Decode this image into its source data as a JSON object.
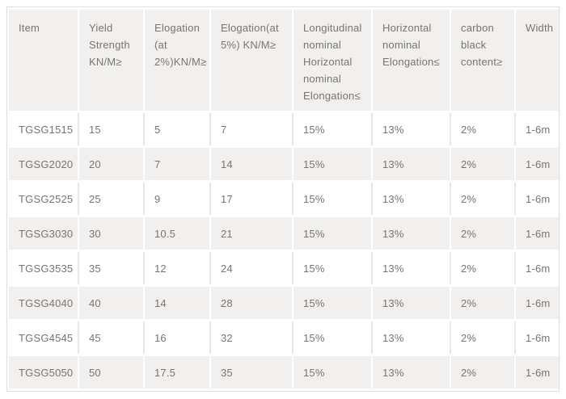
{
  "chart_data": {
    "type": "table",
    "title": "",
    "columns": [
      "Item",
      "Yield Strength KN/M≥",
      "Elogation (at 2%)KN/M≥",
      "Elogation(at 5%) KN/M≥",
      "Longitudinal nominal Horizontal nominal Elongation≤",
      "Horizontal nominal Elongation≤",
      "carbon black content≥",
      "Width"
    ],
    "rows": [
      [
        "TGSG1515",
        "15",
        "5",
        "7",
        "15%",
        "13%",
        "2%",
        "1-6m"
      ],
      [
        "TGSG2020",
        "20",
        "7",
        "14",
        "15%",
        "13%",
        "2%",
        "1-6m"
      ],
      [
        "TGSG2525",
        "25",
        "9",
        "17",
        "15%",
        "13%",
        "2%",
        "1-6m"
      ],
      [
        "TGSG3030",
        "30",
        "10.5",
        "21",
        "15%",
        "13%",
        "2%",
        "1-6m"
      ],
      [
        "TGSG3535",
        "35",
        "12",
        "24",
        "15%",
        "13%",
        "2%",
        "1-6m"
      ],
      [
        "TGSG4040",
        "40",
        "14",
        "28",
        "15%",
        "13%",
        "2%",
        "1-6m"
      ],
      [
        "TGSG4545",
        "45",
        "16",
        "32",
        "15%",
        "13%",
        "2%",
        "1-6m"
      ],
      [
        "TGSG5050",
        "50",
        "17.5",
        "35",
        "15%",
        "13%",
        "2%",
        "1-6m"
      ]
    ],
    "layout": {
      "grid": "zebra-striped",
      "legend": "none",
      "header_lines_max": 5
    }
  },
  "colors": {
    "stripe_bg": "#f1f0ee",
    "row_bg": "#ffffff",
    "text": "#787572",
    "divider": "#e9e7e4",
    "outer_border": "#e0ded9"
  }
}
